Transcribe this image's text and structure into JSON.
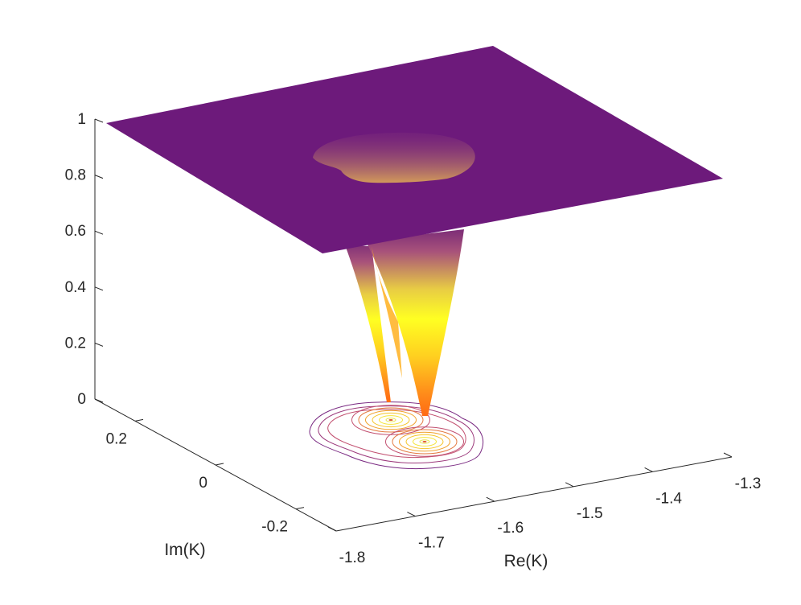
{
  "chart_data": {
    "type": "surface3d",
    "title": "",
    "xlabel": "Re(K)",
    "ylabel": "Im(K)",
    "zlabel": "",
    "xlim": [
      -1.8,
      -1.3
    ],
    "ylim": [
      -0.3,
      0.3
    ],
    "zlim": [
      0,
      1
    ],
    "x_ticks": [
      "-1.8",
      "-1.7",
      "-1.6",
      "-1.5",
      "-1.4",
      "-1.3"
    ],
    "y_ticks": [
      "-0.2",
      "0",
      "0.2"
    ],
    "z_ticks": [
      "0",
      "0.2",
      "0.4",
      "0.6",
      "0.8",
      "1"
    ],
    "colormap": [
      "#6a1a7a",
      "#a6337f",
      "#e0684a",
      "#ff8b1a",
      "#ffe31a",
      "#ffff2a"
    ],
    "plateau_value": 1,
    "minima": [
      {
        "re": -1.63,
        "im": 0.06,
        "value": 0.0
      },
      {
        "re": -1.53,
        "im": -0.08,
        "value": 0.0
      }
    ],
    "contours_on_floor": true,
    "grid": false
  }
}
